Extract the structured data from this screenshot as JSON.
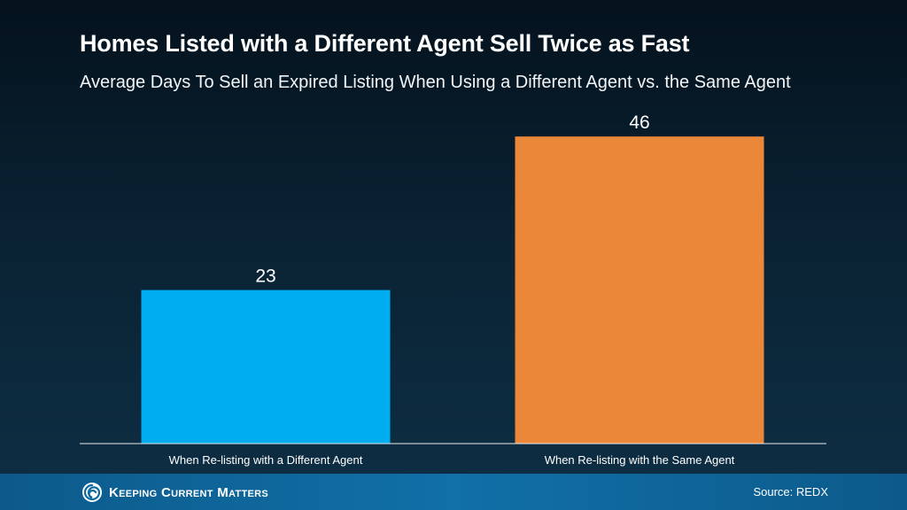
{
  "chart_data": {
    "type": "bar",
    "title": "Homes Listed with a Different Agent Sell Twice as Fast",
    "subtitle": "Average Days To Sell an Expired Listing When Using a Different Agent vs. the Same Agent",
    "categories": [
      "When Re-listing with a Different Agent",
      "When Re-listing with the Same Agent"
    ],
    "values": [
      23,
      46
    ],
    "data_labels": [
      "23",
      "46"
    ],
    "bar_colors": [
      "#00adee",
      "#eb8739"
    ],
    "xlabel": "",
    "ylabel": "",
    "ylim": [
      0,
      50
    ],
    "grid": false,
    "legend": "none"
  },
  "footer": {
    "logo_text": "Keeping Current Matters",
    "logo_icon": "spiral-logo-icon",
    "source": "Source: REDX"
  }
}
